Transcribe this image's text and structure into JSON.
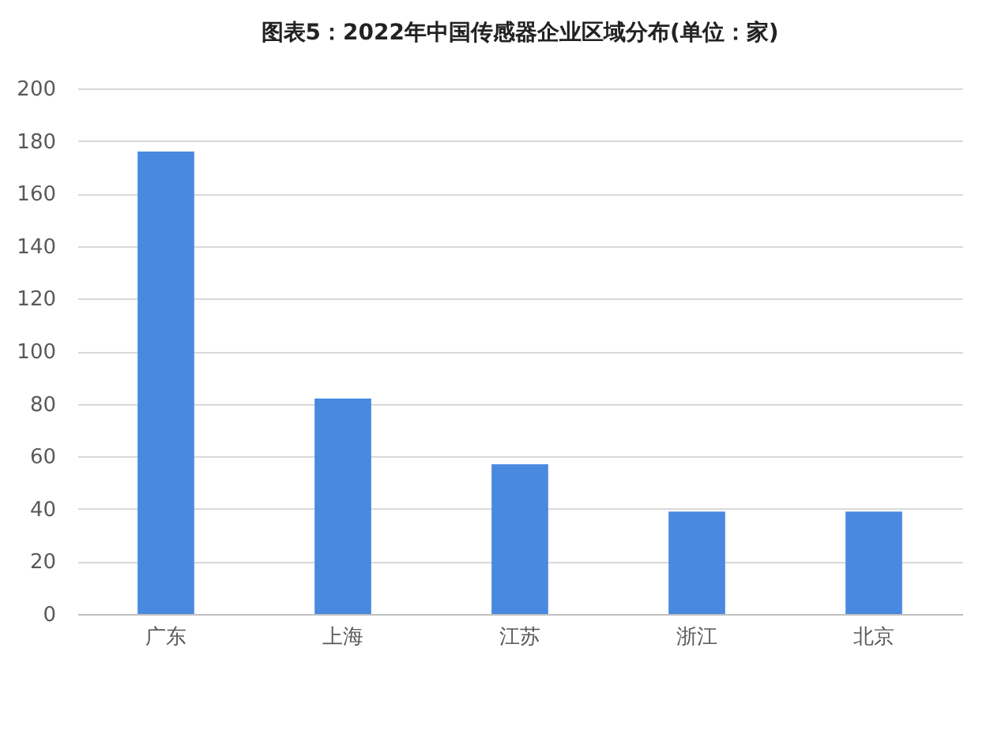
{
  "chart_data": {
    "type": "bar",
    "title": "图表5：2022年中国传感器企业区域分布(单位：家)",
    "categories": [
      "广东",
      "上海",
      "江苏",
      "浙江",
      "北京"
    ],
    "values": [
      176,
      82,
      57,
      39,
      39
    ],
    "color": "#4a89e0",
    "ylim": [
      0,
      200
    ],
    "yticks": [
      0,
      20,
      40,
      60,
      80,
      100,
      120,
      140,
      160,
      180,
      200
    ],
    "grid": "y"
  }
}
